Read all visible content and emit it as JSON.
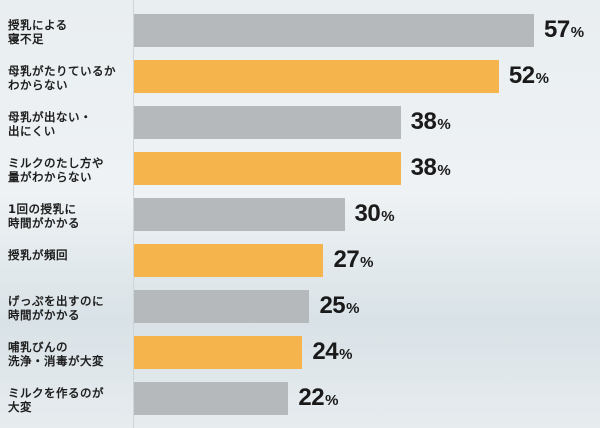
{
  "chart_data": {
    "type": "bar",
    "orientation": "horizontal",
    "categories": [
      "授乳による\n寝不足",
      "母乳がたりているか\nわからない",
      "母乳が出ない・\n出にくい",
      "ミルクのたし方や\n量がわからない",
      "1回の授乳に\n時間がかかる",
      "授乳が頻回",
      "げっぷを出すのに\n時間がかかる",
      "哺乳びんの\n洗浄・消毒が大変",
      "ミルクを作るのが\n大変"
    ],
    "values": [
      57,
      52,
      38,
      38,
      30,
      27,
      25,
      24,
      22
    ],
    "unit": "%",
    "bar_colors": [
      "#b6b9bb",
      "#f5b54c",
      "#b6b9bb",
      "#f5b54c",
      "#b6b9bb",
      "#f5b54c",
      "#b6b9bb",
      "#f5b54c",
      "#b6b9bb"
    ],
    "xlim": [
      0,
      100
    ],
    "grid": false,
    "legend": "none"
  }
}
